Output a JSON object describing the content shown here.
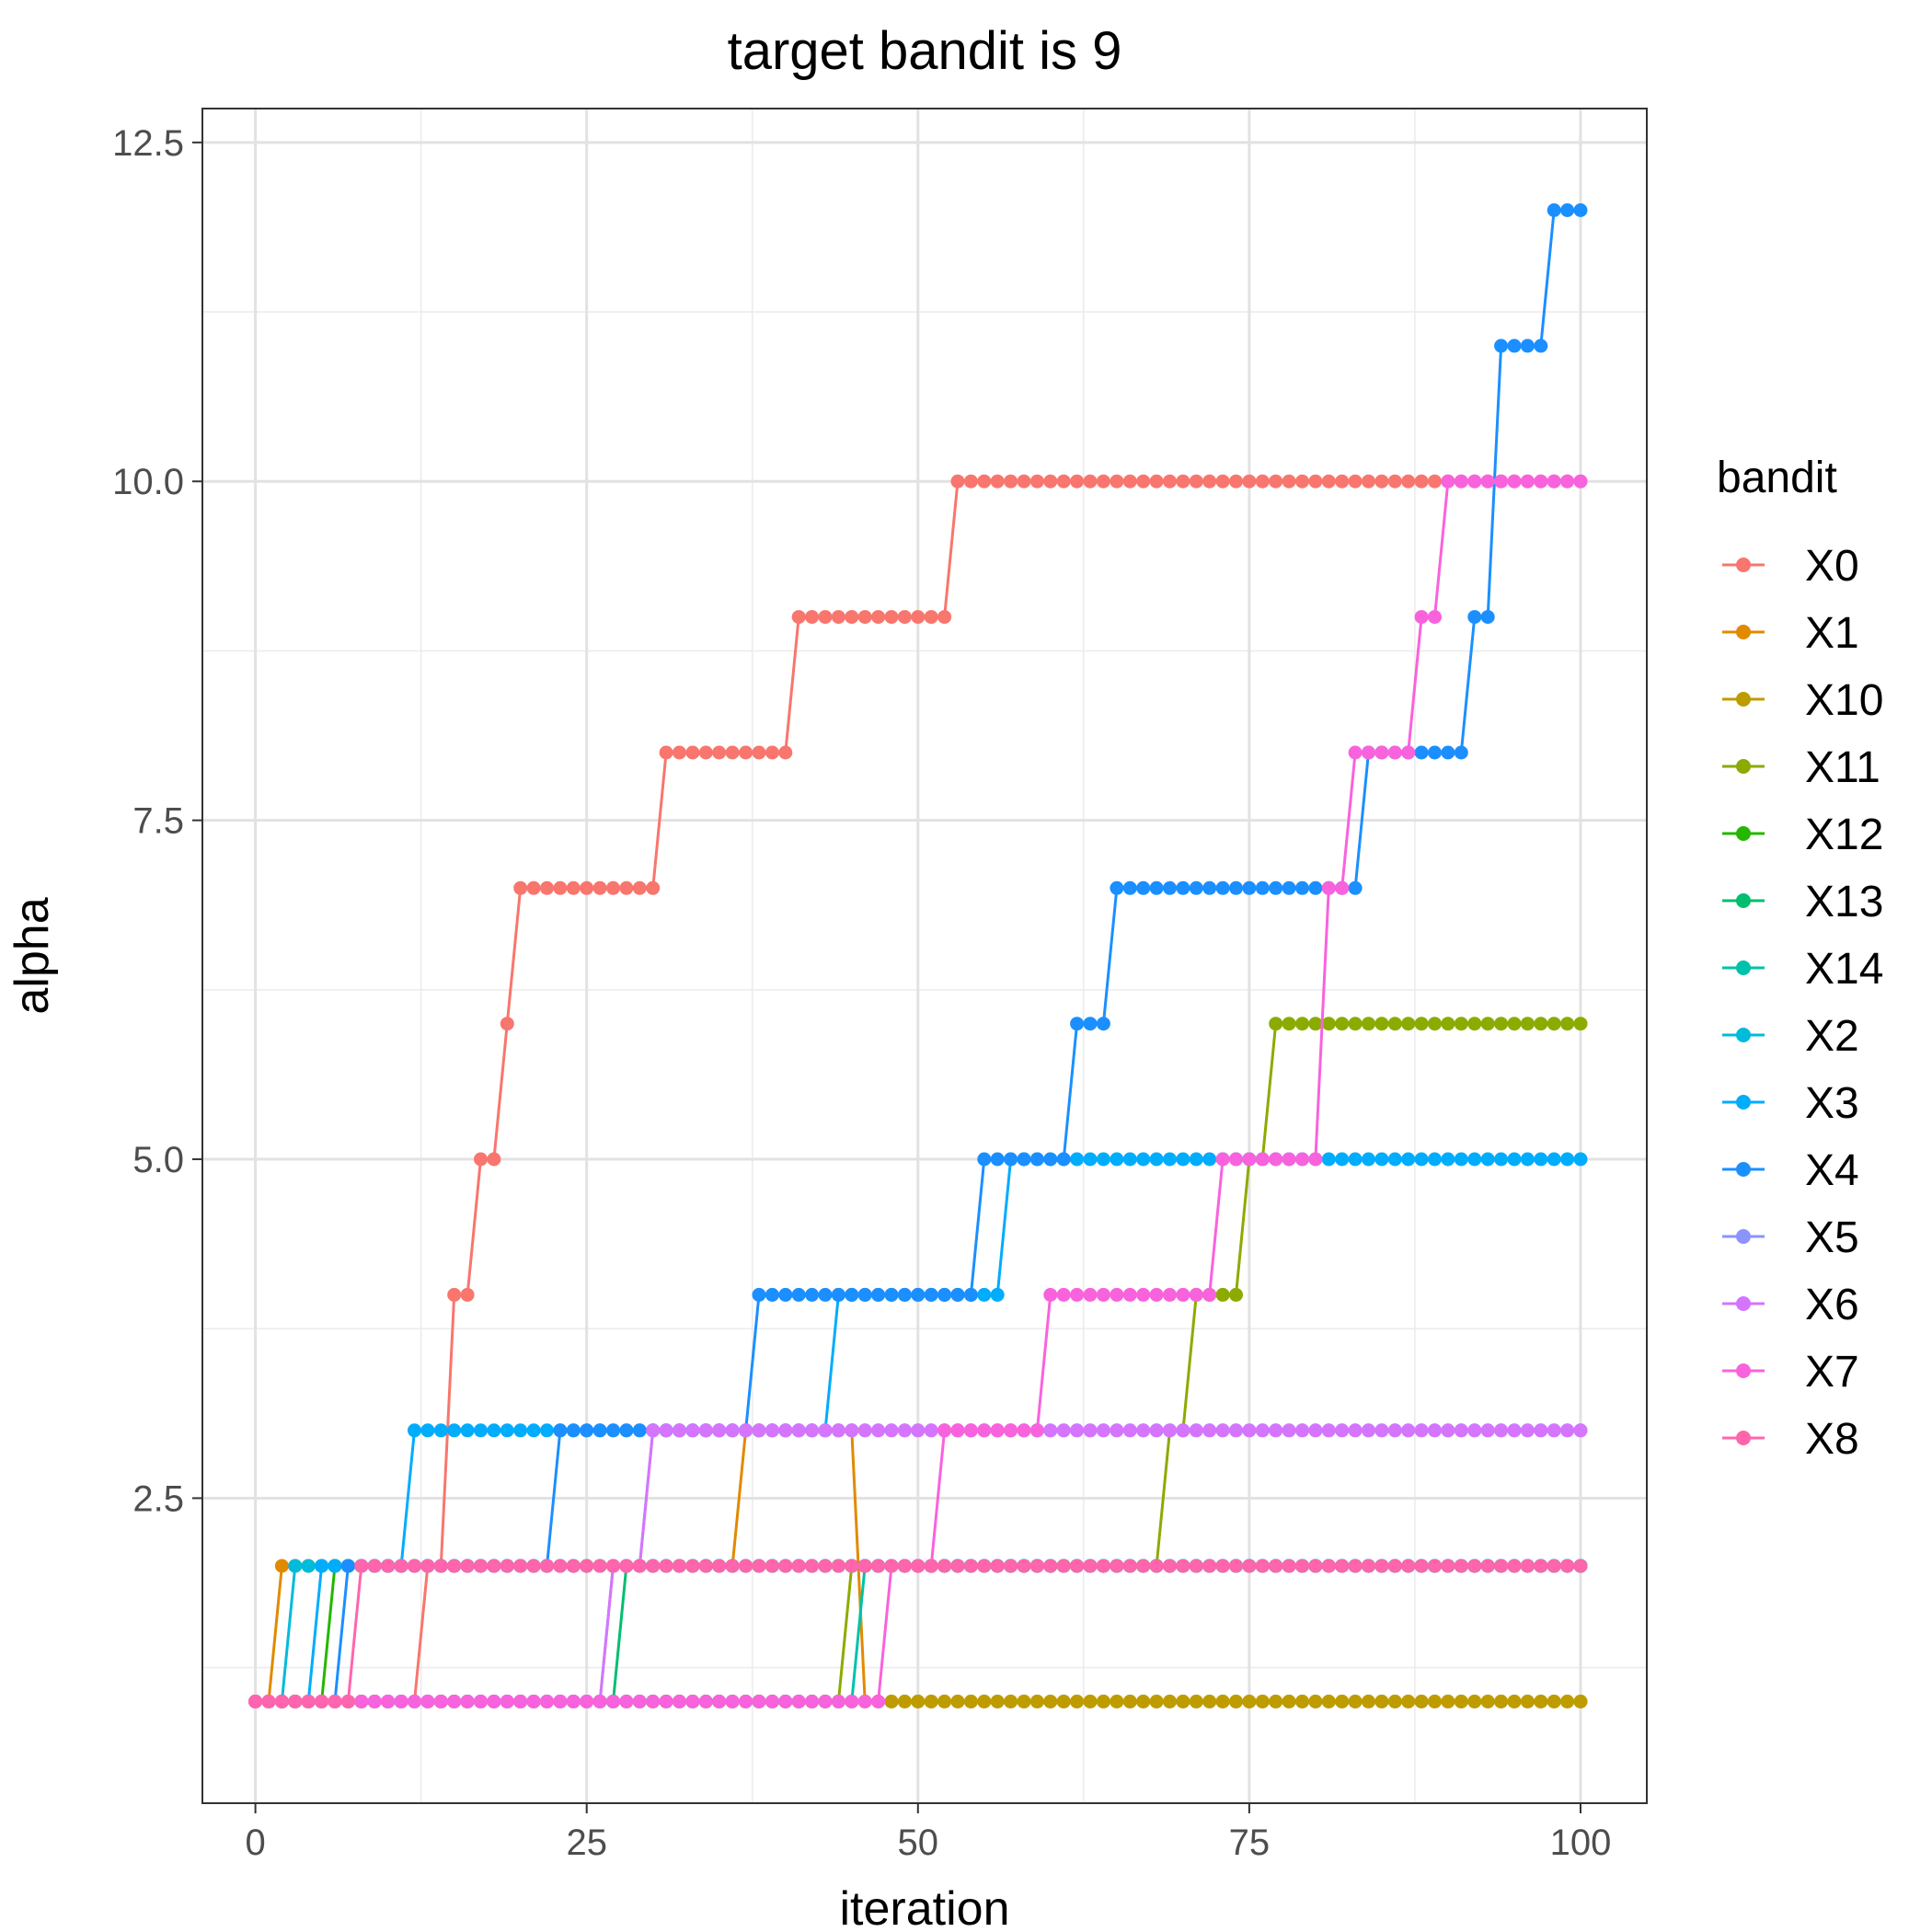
{
  "chart_data": {
    "type": "line",
    "title": "target bandit is 9",
    "xlabel": "iteration",
    "ylabel": "alpha",
    "xlim": [
      -4,
      105
    ],
    "ylim": [
      0.25,
      12.75
    ],
    "xticks": [
      0,
      25,
      50,
      75,
      100
    ],
    "xtick_labels": [
      "0",
      "25",
      "50",
      "75",
      "100"
    ],
    "yticks": [
      2.5,
      5.0,
      7.5,
      10.0,
      12.5
    ],
    "ytick_labels": [
      "2.5",
      "5.0",
      "7.5",
      "10.0",
      "12.5"
    ],
    "grid": true,
    "markers": true,
    "legend": {
      "title": "bandit",
      "position": "right"
    },
    "series": [
      {
        "name": "X0",
        "color": "#F8766D",
        "steps": [
          [
            0,
            1
          ],
          [
            13,
            2
          ],
          [
            15,
            4
          ],
          [
            17,
            5
          ],
          [
            19,
            6
          ],
          [
            20,
            7
          ],
          [
            31,
            8
          ],
          [
            41,
            9
          ],
          [
            53,
            10
          ]
        ]
      },
      {
        "name": "X1",
        "color": "#E18A00",
        "steps": [
          [
            0,
            1
          ],
          [
            2,
            2
          ],
          [
            37,
            3
          ],
          [
            46,
            1
          ]
        ]
      },
      {
        "name": "X10",
        "color": "#BE9C00",
        "steps": [
          [
            0,
            1
          ],
          [
            46,
            1
          ]
        ]
      },
      {
        "name": "X11",
        "color": "#8CAB00",
        "steps": [
          [
            0,
            1
          ],
          [
            45,
            2
          ],
          [
            69,
            3
          ],
          [
            71,
            4
          ],
          [
            75,
            5
          ],
          [
            77,
            6
          ]
        ]
      },
      {
        "name": "X12",
        "color": "#24B700",
        "steps": [
          [
            0,
            1
          ],
          [
            6,
            2
          ]
        ]
      },
      {
        "name": "X13",
        "color": "#00BE70",
        "steps": [
          [
            0,
            1
          ],
          [
            28,
            2
          ]
        ]
      },
      {
        "name": "X14",
        "color": "#00C1AB",
        "steps": [
          [
            0,
            1
          ],
          [
            46,
            2
          ]
        ]
      },
      {
        "name": "X2",
        "color": "#00BBDA",
        "steps": [
          [
            0,
            1
          ],
          [
            3,
            2
          ]
        ]
      },
      {
        "name": "X3",
        "color": "#00ACFC",
        "steps": [
          [
            0,
            1
          ],
          [
            5,
            2
          ],
          [
            12,
            3
          ],
          [
            44,
            4
          ],
          [
            57,
            5
          ]
        ]
      },
      {
        "name": "X4",
        "color": "#1B8FFF",
        "steps": [
          [
            0,
            1
          ],
          [
            7,
            2
          ],
          [
            23,
            3
          ],
          [
            38,
            4
          ],
          [
            55,
            5
          ],
          [
            62,
            6
          ],
          [
            65,
            7
          ],
          [
            84,
            8
          ],
          [
            92,
            9
          ],
          [
            94,
            11
          ],
          [
            98,
            12
          ]
        ]
      },
      {
        "name": "X5",
        "color": "#8B93FF",
        "steps": [
          [
            0,
            1
          ],
          [
            27,
            2
          ],
          [
            30,
            3
          ]
        ]
      },
      {
        "name": "X6",
        "color": "#D575FE",
        "steps": [
          [
            0,
            1
          ],
          [
            27,
            2
          ],
          [
            30,
            3
          ]
        ]
      },
      {
        "name": "X7",
        "color": "#F962DD",
        "steps": [
          [
            0,
            1
          ],
          [
            48,
            2
          ],
          [
            52,
            3
          ],
          [
            60,
            4
          ],
          [
            73,
            5
          ],
          [
            81,
            7
          ],
          [
            83,
            8
          ],
          [
            88,
            9
          ],
          [
            90,
            10
          ]
        ]
      },
      {
        "name": "X8",
        "color": "#FF65AC",
        "steps": [
          [
            0,
            1
          ],
          [
            8,
            2
          ]
        ]
      }
    ]
  }
}
